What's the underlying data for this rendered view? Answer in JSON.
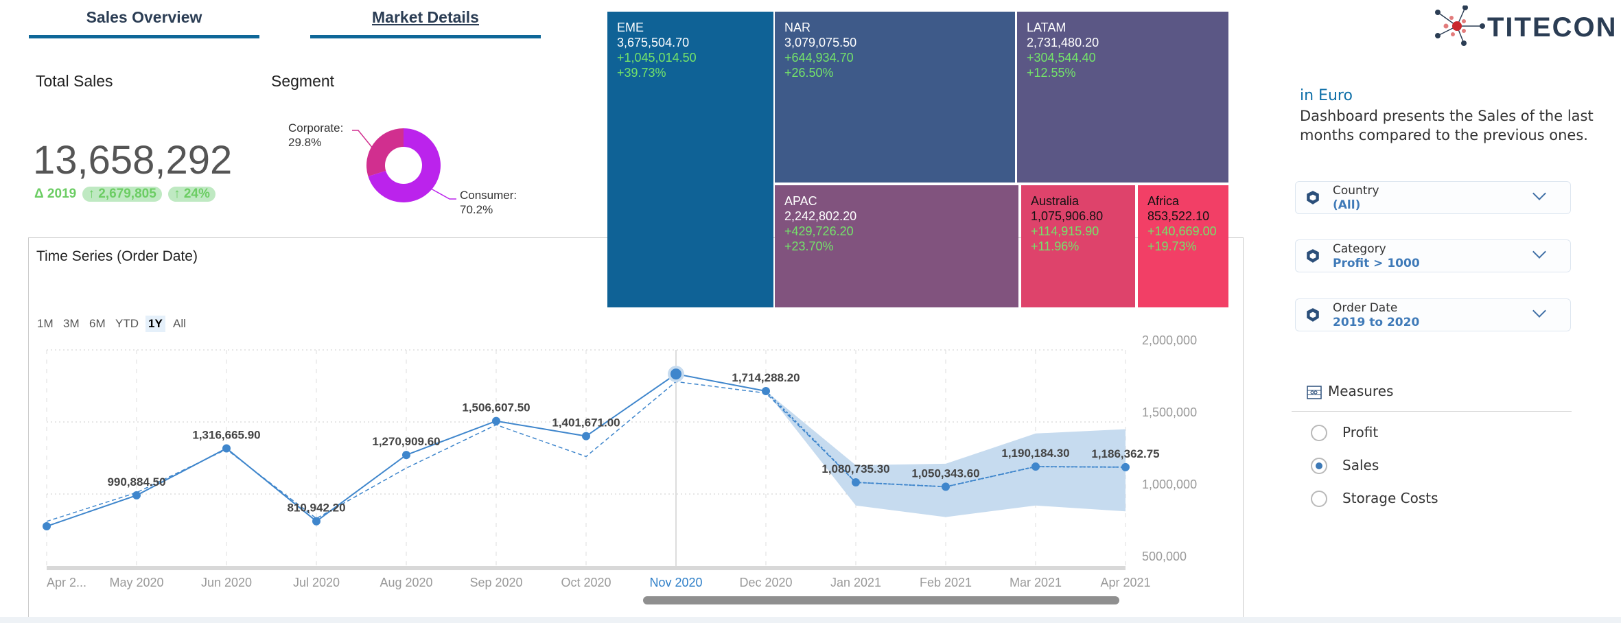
{
  "tabs": [
    {
      "label": "Sales Overview"
    },
    {
      "label": "Market Details"
    }
  ],
  "total_sales": {
    "title": "Total Sales",
    "value": "13,658,292",
    "delta_label": "Δ 2019",
    "delta_abs": "↑ 2,679,805",
    "delta_pct": "↑ 24%"
  },
  "segment": {
    "title": "Segment",
    "chart_data": {
      "type": "pie",
      "donut": true,
      "slices": [
        {
          "name": "Corporate",
          "label": "Corporate:",
          "pct_label": "29.8%",
          "value": 29.8,
          "color": "#d12f8f"
        },
        {
          "name": "Consumer",
          "label": "Consumer:",
          "pct_label": "70.2%",
          "value": 70.2,
          "color": "#bb23ec"
        }
      ]
    }
  },
  "treemap": {
    "chart_data": {
      "type": "treemap",
      "items": [
        {
          "name": "EME",
          "value": "3,675,504.70",
          "delta": "+1,045,014.50",
          "pct": "+39.73%",
          "color": "#0f6296"
        },
        {
          "name": "NAR",
          "value": "3,079,075.50",
          "delta": "+644,934.70",
          "pct": "+26.50%",
          "color": "#3e5a89"
        },
        {
          "name": "LATAM",
          "value": "2,731,480.20",
          "delta": "+304,544.40",
          "pct": "+12.55%",
          "color": "#5b5785"
        },
        {
          "name": "APAC",
          "value": "2,242,802.20",
          "delta": "+429,726.20",
          "pct": "+23.70%",
          "color": "#81537e"
        },
        {
          "name": "Australia",
          "value": "1,075,906.80",
          "delta": "+114,915.90",
          "pct": "+11.96%",
          "color": "#de436b"
        },
        {
          "name": "Africa",
          "value": "853,522.10",
          "delta": "+140,669.00",
          "pct": "+19.73%",
          "color": "#f23f66"
        }
      ]
    }
  },
  "timeseries": {
    "title": "Time Series (Order Date)",
    "ranges": [
      "1M",
      "3M",
      "6M",
      "YTD",
      "1Y",
      "All"
    ],
    "active_range": "1Y",
    "highlight_month": "Nov 2020",
    "chart_data": {
      "type": "line",
      "ylim": [
        500000,
        2000000
      ],
      "yticks": [
        "2,000,000",
        "1,500,000",
        "1,000,000",
        "500,000"
      ],
      "ytick_values": [
        2000000,
        1500000,
        1000000,
        500000
      ],
      "x": [
        "Apr 2...",
        "May 2020",
        "Jun 2020",
        "Jul 2020",
        "Aug 2020",
        "Sep 2020",
        "Oct 2020",
        "Nov 2020",
        "Dec 2020",
        "Jan 2021",
        "Feb 2021",
        "Mar 2021",
        "Apr 2021"
      ],
      "actual": [
        776000,
        990884.5,
        1316665.9,
        810942.2,
        1270909.6,
        1506607.5,
        1401671.0,
        1833000,
        1714288.2,
        null,
        null,
        null,
        null
      ],
      "comparison": [
        810000,
        1010000,
        1310000,
        830000,
        1180000,
        1480000,
        1260000,
        1780000,
        1700000,
        1080735.3,
        1050343.6,
        1190184.3,
        1186362.75
      ],
      "forecast": [
        null,
        null,
        null,
        null,
        null,
        null,
        null,
        null,
        1714288.2,
        1080735.3,
        1050343.6,
        1190184.3,
        1186362.75
      ],
      "band_upper": [
        null,
        null,
        null,
        null,
        null,
        null,
        null,
        null,
        1714288.2,
        1200000,
        1210000,
        1420000,
        1450000
      ],
      "band_lower": [
        null,
        null,
        null,
        null,
        null,
        null,
        null,
        null,
        1714288.2,
        920000,
        840000,
        920000,
        880000
      ],
      "labels": [
        "",
        "990,884.50",
        "1,316,665.90",
        "810,942.20",
        "1,270,909.60",
        "1,506,607.50",
        "1,401,671.00",
        "",
        "1,714,288.20",
        "1,080,735.30",
        "1,050,343.60",
        "1,190,184.30",
        "1,186,362.75"
      ],
      "color": "#3f86cc",
      "band_color": "#c6dbef"
    }
  },
  "sidebar": {
    "logo_text": "TITECON",
    "currency": "in Euro",
    "description_line1": "Dashboard presents the Sales of the last",
    "description_line2": "months compared to the previous ones.",
    "filters": [
      {
        "label": "Country",
        "value": "(All)"
      },
      {
        "label": "Category",
        "value": "Profit > 1000"
      },
      {
        "label": "Order Date",
        "value": "2019 to 2020"
      }
    ],
    "measures": {
      "title": "Measures",
      "options": [
        {
          "label": "Profit",
          "selected": false
        },
        {
          "label": "Sales",
          "selected": true
        },
        {
          "label": "Storage Costs",
          "selected": false
        }
      ]
    }
  }
}
